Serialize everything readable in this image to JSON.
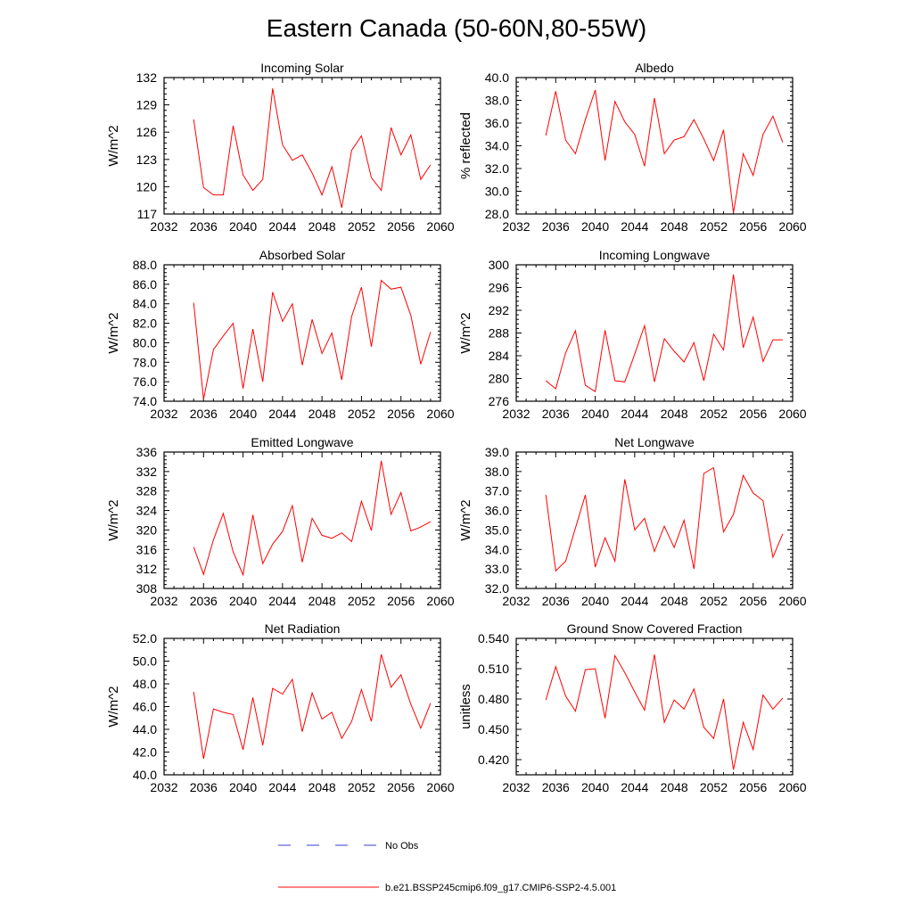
{
  "figure": {
    "title": "Eastern Canada (50-60N,80-55W)",
    "legend": [
      {
        "label": "No Obs",
        "color": "#3b3bd6",
        "style": "dashed"
      },
      {
        "label": "b.e21.BSSP245cmip6.f09_g17.CMIP6-SSP2-4.5.001",
        "color": "#ff0000",
        "style": "solid"
      }
    ]
  },
  "chart_data": [
    {
      "type": "line",
      "title": "Incoming Solar",
      "ylabel": "W/m^2",
      "xlim": [
        2032,
        2060
      ],
      "ylim": [
        117,
        132
      ],
      "x_ticks": [
        "2032",
        "2036",
        "2040",
        "2044",
        "2048",
        "2052",
        "2056",
        "2060"
      ],
      "y_ticks": [
        "117",
        "120",
        "123",
        "126",
        "129",
        "132"
      ],
      "series": [
        {
          "color": "#ff0000",
          "x": [
            2035,
            2036,
            2037,
            2038,
            2039,
            2040,
            2041,
            2042,
            2043,
            2044,
            2045,
            2046,
            2047,
            2048,
            2049,
            2050,
            2051,
            2052,
            2053,
            2054,
            2055,
            2056,
            2057,
            2058,
            2059
          ],
          "y": [
            127.4,
            119.9,
            119.1,
            119.1,
            126.7,
            121.3,
            119.6,
            120.8,
            130.8,
            124.6,
            122.9,
            123.5,
            121.5,
            119.1,
            122.2,
            117.7,
            124.0,
            125.6,
            121.0,
            119.6,
            126.5,
            123.5,
            125.7,
            120.8,
            122.4
          ]
        }
      ]
    },
    {
      "type": "line",
      "title": "Albedo",
      "ylabel": "% reflected",
      "xlim": [
        2032,
        2060
      ],
      "ylim": [
        28,
        40
      ],
      "x_ticks": [
        "2032",
        "2036",
        "2040",
        "2044",
        "2048",
        "2052",
        "2056",
        "2060"
      ],
      "y_ticks": [
        "28.0",
        "30.0",
        "32.0",
        "34.0",
        "36.0",
        "38.0",
        "40.0"
      ],
      "series": [
        {
          "color": "#ff0000",
          "x": [
            2035,
            2036,
            2037,
            2038,
            2039,
            2040,
            2041,
            2042,
            2043,
            2044,
            2045,
            2046,
            2047,
            2048,
            2049,
            2050,
            2051,
            2052,
            2053,
            2054,
            2055,
            2056,
            2057,
            2058,
            2059
          ],
          "y": [
            34.9,
            38.8,
            34.5,
            33.3,
            36.3,
            38.9,
            32.7,
            37.9,
            36.1,
            35.0,
            32.2,
            38.2,
            33.3,
            34.5,
            34.8,
            36.3,
            34.6,
            32.7,
            35.4,
            28.1,
            33.3,
            31.4,
            35.0,
            36.6,
            34.3
          ]
        }
      ]
    },
    {
      "type": "line",
      "title": "Absorbed Solar",
      "ylabel": "W/m^2",
      "xlim": [
        2032,
        2060
      ],
      "ylim": [
        74,
        88
      ],
      "x_ticks": [
        "2032",
        "2036",
        "2040",
        "2044",
        "2048",
        "2052",
        "2056",
        "2060"
      ],
      "y_ticks": [
        "74.0",
        "76.0",
        "78.0",
        "80.0",
        "82.0",
        "84.0",
        "86.0",
        "88.0"
      ],
      "series": [
        {
          "color": "#ff0000",
          "x": [
            2035,
            2036,
            2037,
            2038,
            2039,
            2040,
            2041,
            2042,
            2043,
            2044,
            2045,
            2046,
            2047,
            2048,
            2049,
            2050,
            2051,
            2052,
            2053,
            2054,
            2055,
            2056,
            2057,
            2058,
            2059
          ],
          "y": [
            84.1,
            74.2,
            79.3,
            80.7,
            82.0,
            75.3,
            81.4,
            76.0,
            85.2,
            82.2,
            84.0,
            77.7,
            82.4,
            78.9,
            81.0,
            76.2,
            82.7,
            85.7,
            79.6,
            86.4,
            85.5,
            85.7,
            82.8,
            77.8,
            81.1
          ]
        }
      ]
    },
    {
      "type": "line",
      "title": "Incoming Longwave",
      "ylabel": "W/m^2",
      "xlim": [
        2032,
        2060
      ],
      "ylim": [
        276,
        300
      ],
      "x_ticks": [
        "2032",
        "2036",
        "2040",
        "2044",
        "2048",
        "2052",
        "2056",
        "2060"
      ],
      "y_ticks": [
        "276",
        "280",
        "284",
        "288",
        "292",
        "296",
        "300"
      ],
      "series": [
        {
          "color": "#ff0000",
          "x": [
            2035,
            2036,
            2037,
            2038,
            2039,
            2040,
            2041,
            2042,
            2043,
            2044,
            2045,
            2046,
            2047,
            2048,
            2049,
            2050,
            2051,
            2052,
            2053,
            2054,
            2055,
            2056,
            2057,
            2058,
            2059
          ],
          "y": [
            279.6,
            278.2,
            284.5,
            288.4,
            278.8,
            277.7,
            288.5,
            279.6,
            279.4,
            284.3,
            289.3,
            279.4,
            287.0,
            284.8,
            282.9,
            286.3,
            279.6,
            287.8,
            285.0,
            298.3,
            285.4,
            290.8,
            283.0,
            286.8,
            286.8
          ]
        }
      ]
    },
    {
      "type": "line",
      "title": "Emitted Longwave",
      "ylabel": "W/m^2",
      "xlim": [
        2032,
        2060
      ],
      "ylim": [
        308,
        336
      ],
      "x_ticks": [
        "2032",
        "2036",
        "2040",
        "2044",
        "2048",
        "2052",
        "2056",
        "2060"
      ],
      "y_ticks": [
        "308",
        "312",
        "316",
        "320",
        "324",
        "328",
        "332",
        "336"
      ],
      "series": [
        {
          "color": "#ff0000",
          "x": [
            2035,
            2036,
            2037,
            2038,
            2039,
            2040,
            2041,
            2042,
            2043,
            2044,
            2045,
            2046,
            2047,
            2048,
            2049,
            2050,
            2051,
            2052,
            2053,
            2054,
            2055,
            2056,
            2057,
            2058,
            2059
          ],
          "y": [
            316.5,
            310.9,
            318.0,
            323.4,
            315.5,
            310.8,
            323.1,
            313.1,
            317.1,
            319.7,
            325.0,
            313.4,
            322.4,
            318.9,
            318.3,
            319.4,
            317.6,
            325.9,
            319.9,
            334.2,
            323.2,
            327.7,
            319.8,
            320.6,
            321.7
          ]
        }
      ]
    },
    {
      "type": "line",
      "title": "Net Longwave",
      "ylabel": "W/m^2",
      "xlim": [
        2032,
        2060
      ],
      "ylim": [
        32,
        39
      ],
      "x_ticks": [
        "2032",
        "2036",
        "2040",
        "2044",
        "2048",
        "2052",
        "2056",
        "2060"
      ],
      "y_ticks": [
        "32.0",
        "33.0",
        "34.0",
        "35.0",
        "36.0",
        "37.0",
        "38.0",
        "39.0"
      ],
      "series": [
        {
          "color": "#ff0000",
          "x": [
            2035,
            2036,
            2037,
            2038,
            2039,
            2040,
            2041,
            2042,
            2043,
            2044,
            2045,
            2046,
            2047,
            2048,
            2049,
            2050,
            2051,
            2052,
            2053,
            2054,
            2055,
            2056,
            2057,
            2058,
            2059
          ],
          "y": [
            36.8,
            32.9,
            33.4,
            35.1,
            36.8,
            33.1,
            34.6,
            33.4,
            37.6,
            35.0,
            35.6,
            33.9,
            35.2,
            34.1,
            35.5,
            33.0,
            37.9,
            38.2,
            34.9,
            35.8,
            37.8,
            36.9,
            36.5,
            33.6,
            34.8
          ]
        }
      ]
    },
    {
      "type": "line",
      "title": "Net Radiation",
      "ylabel": "W/m^2",
      "xlim": [
        2032,
        2060
      ],
      "ylim": [
        40,
        52
      ],
      "x_ticks": [
        "2032",
        "2036",
        "2040",
        "2044",
        "2048",
        "2052",
        "2056",
        "2060"
      ],
      "y_ticks": [
        "40.0",
        "42.0",
        "44.0",
        "46.0",
        "48.0",
        "50.0",
        "52.0"
      ],
      "series": [
        {
          "color": "#ff0000",
          "x": [
            2035,
            2036,
            2037,
            2038,
            2039,
            2040,
            2041,
            2042,
            2043,
            2044,
            2045,
            2046,
            2047,
            2048,
            2049,
            2050,
            2051,
            2052,
            2053,
            2054,
            2055,
            2056,
            2057,
            2058,
            2059
          ],
          "y": [
            47.3,
            41.4,
            45.8,
            45.5,
            45.3,
            42.2,
            46.8,
            42.6,
            47.6,
            47.1,
            48.4,
            43.8,
            47.2,
            44.9,
            45.5,
            43.2,
            44.7,
            47.5,
            44.7,
            50.6,
            47.7,
            48.8,
            46.2,
            44.1,
            46.3
          ]
        }
      ]
    },
    {
      "type": "line",
      "title": "Ground Snow Covered Fraction",
      "ylabel": "unitless",
      "xlim": [
        2032,
        2060
      ],
      "ylim": [
        0.405,
        0.54
      ],
      "x_ticks": [
        "2032",
        "2036",
        "2040",
        "2044",
        "2048",
        "2052",
        "2056",
        "2060"
      ],
      "y_ticks": [
        "0.420",
        "0.450",
        "0.480",
        "0.510",
        "0.540"
      ],
      "series": [
        {
          "color": "#ff0000",
          "x": [
            2035,
            2036,
            2037,
            2038,
            2039,
            2040,
            2041,
            2042,
            2043,
            2044,
            2045,
            2046,
            2047,
            2048,
            2049,
            2050,
            2051,
            2052,
            2053,
            2054,
            2055,
            2056,
            2057,
            2058,
            2059
          ],
          "y": [
            0.479,
            0.512,
            0.483,
            0.468,
            0.509,
            0.51,
            0.461,
            0.523,
            0.506,
            0.487,
            0.469,
            0.524,
            0.457,
            0.479,
            0.47,
            0.49,
            0.452,
            0.441,
            0.48,
            0.41,
            0.457,
            0.43,
            0.484,
            0.47,
            0.481
          ]
        }
      ]
    }
  ]
}
